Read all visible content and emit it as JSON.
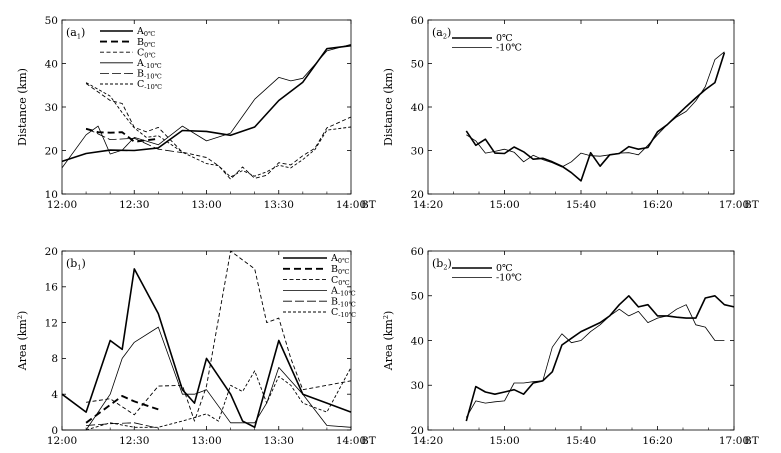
{
  "chart_data": [
    {
      "id": "a1",
      "type": "line",
      "panel_label": "(a",
      "panel_label_sub": "1",
      "ylabel": "Distance (km)",
      "xunit": "BT",
      "ylim": [
        10,
        50
      ],
      "yticks": [
        10,
        20,
        30,
        40,
        50
      ],
      "xlim": [
        0,
        120
      ],
      "xticks": [
        0,
        30,
        60,
        90,
        120
      ],
      "xticklabels": [
        "12:00",
        "12:30",
        "13:00",
        "13:30",
        "14:00"
      ],
      "series": [
        {
          "name": "A",
          "sub": "0℃",
          "style": "thickSolid",
          "x": [
            0,
            10,
            20,
            30,
            40,
            50,
            60,
            70,
            80,
            90,
            100,
            110,
            120
          ],
          "y": [
            17.5,
            19.3,
            20.1,
            20.0,
            20.6,
            24.6,
            24.4,
            23.5,
            25.4,
            31.5,
            35.7,
            43.4,
            44.1
          ]
        },
        {
          "name": "B",
          "sub": "0℃",
          "style": "thickDash",
          "x": [
            10,
            15,
            20,
            25,
            30,
            40
          ],
          "y": [
            25.0,
            24.2,
            24.1,
            24.2,
            22.0,
            22.7
          ]
        },
        {
          "name": "C",
          "sub": "0℃",
          "style": "thinDash",
          "x": [
            10,
            20,
            25,
            30,
            35,
            40,
            50,
            60,
            65,
            70,
            75,
            80,
            85,
            90,
            95,
            100,
            105,
            110,
            120
          ],
          "y": [
            35.4,
            31.5,
            30.8,
            25.3,
            24.3,
            25.3,
            19.6,
            18.4,
            16.5,
            13.4,
            16.2,
            13.6,
            14.3,
            17.2,
            16.7,
            18.8,
            20.5,
            25.2,
            27.7
          ]
        },
        {
          "name": "A",
          "sub": "-10℃",
          "style": "thinSolid",
          "x": [
            0,
            10,
            15,
            20,
            25,
            30,
            40,
            50,
            60,
            70,
            80,
            90,
            95,
            100,
            110,
            120
          ],
          "y": [
            16.0,
            23.6,
            25.6,
            19.2,
            20.1,
            23.0,
            21.3,
            25.6,
            22.2,
            24.0,
            31.8,
            36.8,
            36.0,
            36.6,
            42.9,
            44.4
          ]
        },
        {
          "name": "B",
          "sub": "-10℃",
          "style": "thinLongDash",
          "x": [
            10,
            20,
            30,
            40,
            50
          ],
          "y": [
            25.1,
            22.5,
            22.8,
            20.3,
            19.5
          ]
        },
        {
          "name": "C",
          "sub": "-10℃",
          "style": "thinShortDash",
          "x": [
            10,
            20,
            25,
            30,
            35,
            40,
            50,
            60,
            65,
            70,
            75,
            80,
            85,
            90,
            95,
            100,
            105,
            110,
            120
          ],
          "y": [
            35.6,
            32.5,
            28.7,
            25.2,
            23.0,
            23.4,
            19.6,
            17.0,
            16.5,
            13.9,
            15.4,
            14.1,
            15.1,
            16.6,
            16.0,
            17.9,
            20.2,
            24.7,
            25.4
          ]
        }
      ]
    },
    {
      "id": "a2",
      "type": "line",
      "panel_label": "(a",
      "panel_label_sub": "2",
      "ylabel": "Distance (km)",
      "xunit": "BT",
      "ylim": [
        20,
        60
      ],
      "yticks": [
        20,
        30,
        40,
        50,
        60
      ],
      "xlim": [
        0,
        160
      ],
      "xticks": [
        0,
        40,
        80,
        120,
        160
      ],
      "xticklabels": [
        "14:20",
        "15:00",
        "15:40",
        "16:20",
        "17:00"
      ],
      "series": [
        {
          "name": "0℃",
          "style": "thickSolid",
          "x": [
            20,
            25,
            30,
            35,
            40,
            45,
            50,
            55,
            60,
            65,
            70,
            75,
            80,
            85,
            90,
            95,
            100,
            105,
            110,
            115,
            120,
            125,
            130,
            135,
            140,
            145,
            150,
            155
          ],
          "y": [
            34.5,
            31.2,
            32.6,
            29.4,
            29.3,
            30.8,
            29.7,
            28.0,
            28.2,
            27.4,
            26.4,
            24.9,
            23.0,
            29.5,
            26.4,
            29.0,
            29.3,
            30.9,
            30.3,
            30.7,
            34.3,
            35.9,
            38.0,
            40.1,
            42.1,
            44.0,
            45.6,
            52.5
          ]
        },
        {
          "name": "-10℃",
          "style": "thinSolid",
          "x": [
            20,
            25,
            30,
            35,
            40,
            45,
            50,
            55,
            60,
            65,
            70,
            75,
            80,
            85,
            90,
            95,
            100,
            105,
            110,
            115,
            120,
            125,
            130,
            135,
            140,
            145,
            150,
            155
          ],
          "y": [
            33.6,
            32.2,
            29.4,
            29.8,
            30.3,
            29.6,
            27.4,
            28.9,
            27.9,
            27.2,
            26.2,
            27.4,
            29.4,
            28.8,
            28.7,
            29.0,
            29.4,
            29.5,
            29.0,
            31.2,
            33.6,
            35.9,
            37.7,
            39.0,
            41.4,
            44.7,
            50.9,
            52.7
          ]
        }
      ]
    },
    {
      "id": "b1",
      "type": "line",
      "panel_label": "(b",
      "panel_label_sub": "1",
      "ylabel": "Area (km",
      "ylabel_sup": "2",
      "ylabel_end": ")",
      "xunit": "BT",
      "ylim": [
        0,
        20
      ],
      "yticks": [
        0,
        4,
        8,
        12,
        16,
        20
      ],
      "xlim": [
        0,
        120
      ],
      "xticks": [
        0,
        30,
        60,
        90,
        120
      ],
      "xticklabels": [
        "12:00",
        "12:30",
        "13:00",
        "13:30",
        "14:00"
      ],
      "series": [
        {
          "name": "A",
          "sub": "0℃",
          "style": "thickSolid",
          "x": [
            0,
            10,
            20,
            25,
            30,
            40,
            50,
            55,
            60,
            70,
            75,
            80,
            90,
            100,
            110,
            120
          ],
          "y": [
            4.0,
            2.0,
            10.0,
            9.0,
            18.0,
            13.0,
            4.5,
            3.0,
            8.0,
            4.0,
            1.0,
            0.3,
            10.0,
            4.0,
            3.0,
            2.0
          ]
        },
        {
          "name": "B",
          "sub": "0℃",
          "style": "thickDash",
          "x": [
            10,
            20,
            25,
            30,
            40
          ],
          "y": [
            0.8,
            2.8,
            3.8,
            3.2,
            2.3
          ]
        },
        {
          "name": "C",
          "sub": "0℃",
          "style": "thinDash",
          "x": [
            10,
            20,
            30,
            40,
            50,
            55,
            60,
            70,
            75,
            80,
            85,
            90,
            95,
            100,
            110,
            120
          ],
          "y": [
            3.1,
            3.5,
            1.7,
            4.9,
            5.0,
            1.0,
            4.9,
            20.0,
            19.0,
            18.0,
            12.0,
            12.5,
            8.0,
            4.5,
            5.0,
            5.5
          ]
        },
        {
          "name": "A",
          "sub": "-10℃",
          "style": "thinSolid",
          "x": [
            0,
            10,
            20,
            25,
            30,
            40,
            50,
            55,
            60,
            70,
            80,
            85,
            90,
            100,
            110,
            120
          ],
          "y": [
            0.0,
            0.0,
            4.0,
            8.0,
            9.8,
            11.5,
            4.0,
            4.0,
            4.5,
            0.8,
            0.8,
            3.0,
            7.0,
            4.0,
            0.5,
            0.3
          ]
        },
        {
          "name": "B",
          "sub": "-10℃",
          "style": "thinLongDash",
          "x": [
            10,
            20,
            30,
            40
          ],
          "y": [
            0.5,
            0.7,
            0.8,
            0.2
          ]
        },
        {
          "name": "C",
          "sub": "-10℃",
          "style": "thinShortDash",
          "x": [
            10,
            20,
            30,
            40,
            50,
            60,
            65,
            70,
            75,
            80,
            85,
            90,
            95,
            100,
            110,
            120
          ],
          "y": [
            0.0,
            0.8,
            0.3,
            0.3,
            1.0,
            1.8,
            1.0,
            5.0,
            4.3,
            6.6,
            3.0,
            6.0,
            5.0,
            3.0,
            2.0,
            7.0
          ]
        }
      ]
    },
    {
      "id": "b2",
      "type": "line",
      "panel_label": "(b",
      "panel_label_sub": "2",
      "ylabel": "Area (km",
      "ylabel_sup": "2",
      "ylabel_end": ")",
      "xunit": "BT",
      "ylim": [
        20,
        60
      ],
      "yticks": [
        20,
        30,
        40,
        50,
        60
      ],
      "xlim": [
        0,
        160
      ],
      "xticks": [
        0,
        40,
        80,
        120,
        160
      ],
      "xticklabels": [
        "14:20",
        "15:00",
        "15:40",
        "16:20",
        "17:00"
      ],
      "series": [
        {
          "name": "0℃",
          "style": "thickSolid",
          "x": [
            20,
            25,
            30,
            35,
            40,
            45,
            50,
            55,
            60,
            65,
            70,
            75,
            80,
            85,
            90,
            95,
            100,
            105,
            110,
            115,
            120,
            125,
            130,
            135,
            140,
            145,
            150,
            155,
            160
          ],
          "y": [
            22.0,
            29.7,
            28.5,
            28.0,
            28.5,
            29.0,
            28.0,
            30.5,
            31.0,
            33.0,
            39.0,
            40.5,
            42.0,
            43.0,
            44.0,
            45.5,
            48.0,
            50.0,
            47.5,
            48.0,
            45.5,
            45.5,
            45.2,
            45.0,
            45.0,
            49.5,
            50.0,
            48.0,
            47.5
          ]
        },
        {
          "name": "-10℃",
          "style": "thinSolid",
          "x": [
            20,
            25,
            30,
            35,
            40,
            45,
            50,
            55,
            60,
            65,
            70,
            75,
            80,
            85,
            90,
            95,
            100,
            105,
            110,
            115,
            120,
            125,
            130,
            135,
            140,
            145,
            150,
            155
          ],
          "y": [
            22.8,
            26.5,
            26.0,
            26.3,
            26.5,
            30.5,
            30.5,
            30.8,
            31.0,
            38.5,
            41.5,
            39.5,
            40.0,
            42.0,
            43.5,
            45.5,
            47.0,
            45.5,
            46.5,
            44.0,
            45.0,
            45.5,
            47.0,
            48.0,
            43.5,
            43.0,
            40.0,
            40.0
          ]
        }
      ]
    }
  ]
}
